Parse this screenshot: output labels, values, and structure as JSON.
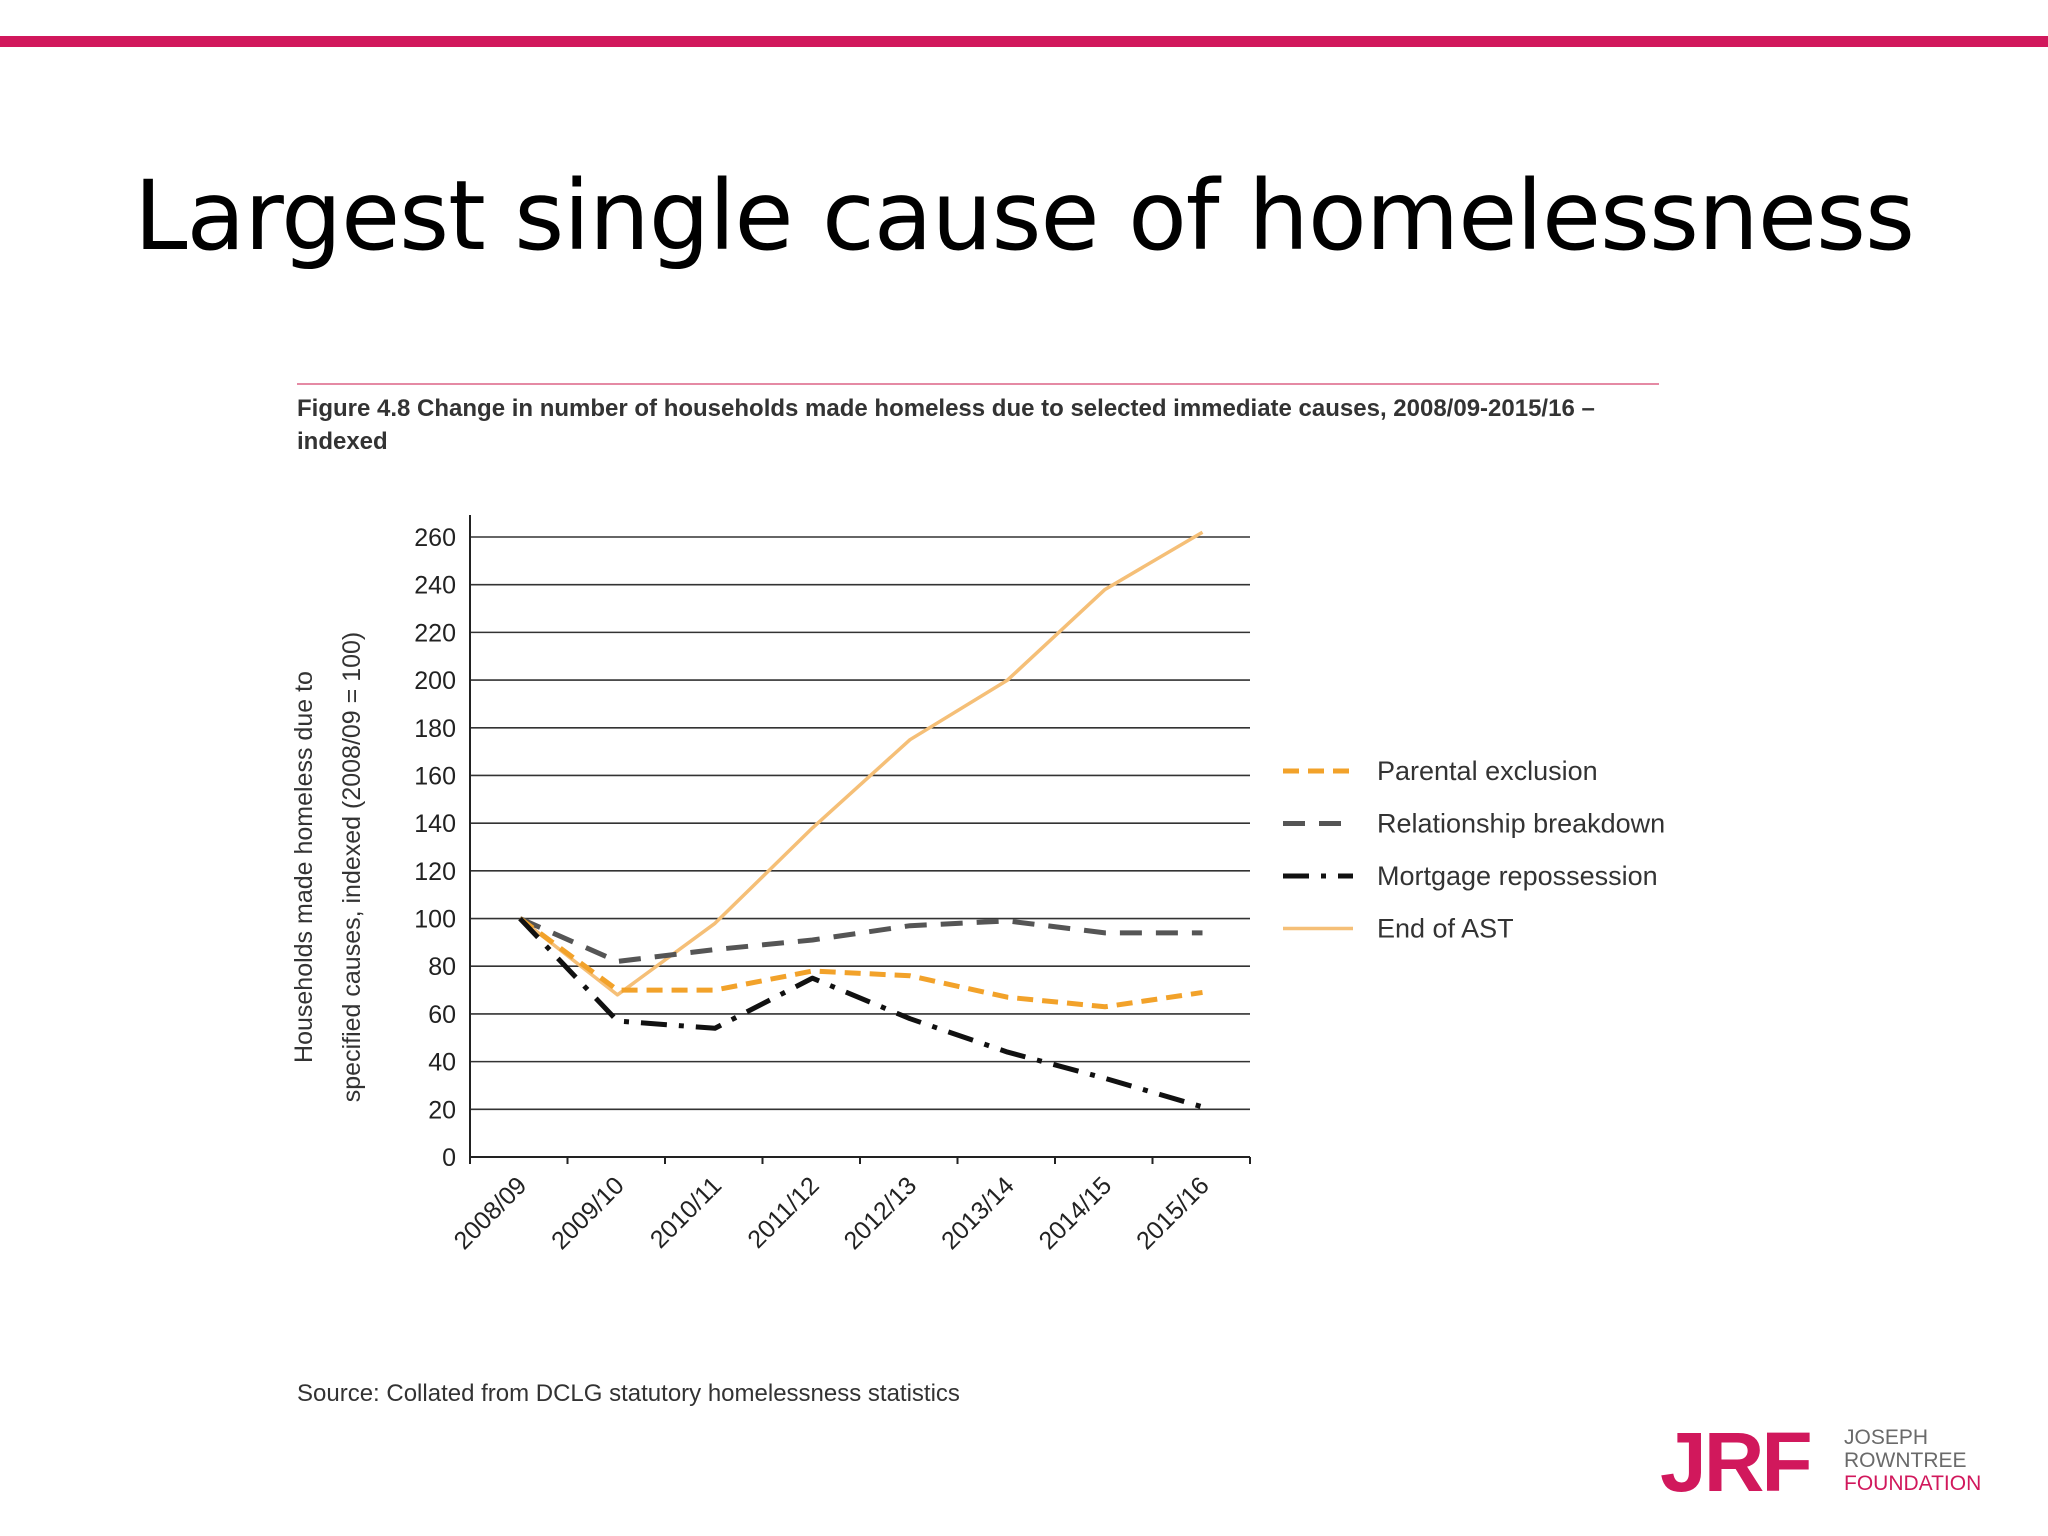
{
  "slide": {
    "title": "Largest single cause of homelessness",
    "source": "Source: Collated from DCLG statutory homelessness statistics"
  },
  "logo": {
    "mark": "JRF",
    "words": [
      "JOSEPH",
      "ROWNTREE",
      "FOUNDATION"
    ]
  },
  "colors": {
    "accent": "#d1185c",
    "parental": "#f2a22a",
    "relationship": "#555555",
    "mortgage": "#111111",
    "ast": "#f5bf77"
  },
  "chart_data": {
    "type": "line",
    "title": "Figure 4.8 Change in number of households made homeless due to selected immediate causes, 2008/09-2015/16 – indexed",
    "xlabel": "",
    "ylabel": "Households made homeless due to specified causes, indexed (2008/09 = 100)",
    "ylim": [
      0,
      260
    ],
    "yticks": [
      0,
      20,
      40,
      60,
      80,
      100,
      120,
      140,
      160,
      180,
      200,
      220,
      240,
      260
    ],
    "categories": [
      "2008/09",
      "2009/10",
      "2010/11",
      "2011/12",
      "2012/13",
      "2013/14",
      "2014/15",
      "2015/16"
    ],
    "grid": true,
    "legend_position": "right",
    "series": [
      {
        "name": "Parental exclusion",
        "color": "#f2a22a",
        "style": "dashed",
        "values": [
          100,
          70,
          70,
          78,
          76,
          67,
          63,
          69
        ]
      },
      {
        "name": "Relationship breakdown",
        "color": "#555555",
        "style": "longdash",
        "values": [
          100,
          82,
          87,
          91,
          97,
          99,
          94,
          94
        ]
      },
      {
        "name": "Mortgage repossession",
        "color": "#111111",
        "style": "dashdot",
        "values": [
          100,
          57,
          54,
          75,
          58,
          44,
          33,
          21
        ]
      },
      {
        "name": "End of AST",
        "color": "#f5bf77",
        "style": "solid",
        "values": [
          100,
          68,
          98,
          138,
          175,
          200,
          238,
          262
        ]
      }
    ]
  }
}
